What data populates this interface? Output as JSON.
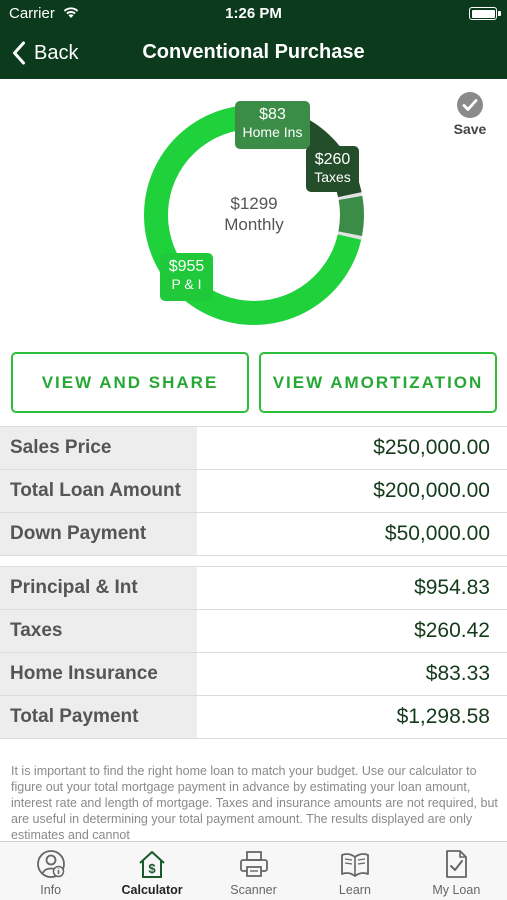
{
  "status_bar": {
    "carrier": "Carrier",
    "time": "1:26 PM"
  },
  "nav": {
    "back_label": "Back",
    "title": "Conventional Purchase"
  },
  "chart": {
    "center_amount": "$1299",
    "center_label": "Monthly",
    "labels": {
      "home_ins": {
        "value": "$83",
        "name": "Home Ins"
      },
      "taxes": {
        "value": "$260",
        "name": "Taxes"
      },
      "pi": {
        "value": "$955",
        "name": "P & I"
      }
    },
    "colors": {
      "pi": "#1fd23c",
      "home_ins": "#3a8c46",
      "taxes": "#244d2a",
      "ring_bg": "#e0e0e0"
    }
  },
  "chart_data": {
    "type": "pie",
    "categories": [
      "P & I",
      "Taxes",
      "Home Ins"
    ],
    "values": [
      955,
      260,
      83
    ]
  },
  "save": {
    "label": "Save"
  },
  "buttons": {
    "view_share": "VIEW AND SHARE",
    "view_amortization": "VIEW AMORTIZATION"
  },
  "loan_table": [
    {
      "label": "Sales Price",
      "value": "$250,000.00"
    },
    {
      "label": "Total Loan Amount",
      "value": "$200,000.00"
    },
    {
      "label": "Down Payment",
      "value": "$50,000.00"
    }
  ],
  "payment_table": [
    {
      "label": "Principal & Int",
      "value": "$954.83"
    },
    {
      "label": "Taxes",
      "value": "$260.42"
    },
    {
      "label": "Home Insurance",
      "value": "$83.33"
    },
    {
      "label": "Total Payment",
      "value": "$1,298.58"
    }
  ],
  "disclaimer": "It is important to find the right home loan to match your budget. Use our calculator to figure out your total mortgage payment in advance by estimating your loan amount, interest rate and length of mortgage. Taxes and insurance amounts are not required, but are useful in determining your total payment amount.  The results displayed are only estimates and cannot",
  "tabs": [
    {
      "label": "Info"
    },
    {
      "label": "Calculator"
    },
    {
      "label": "Scanner"
    },
    {
      "label": "Learn"
    },
    {
      "label": "My Loan"
    }
  ],
  "theme": {
    "header_bg": "#0b3a1d",
    "accent_green": "#2dbf3a"
  }
}
